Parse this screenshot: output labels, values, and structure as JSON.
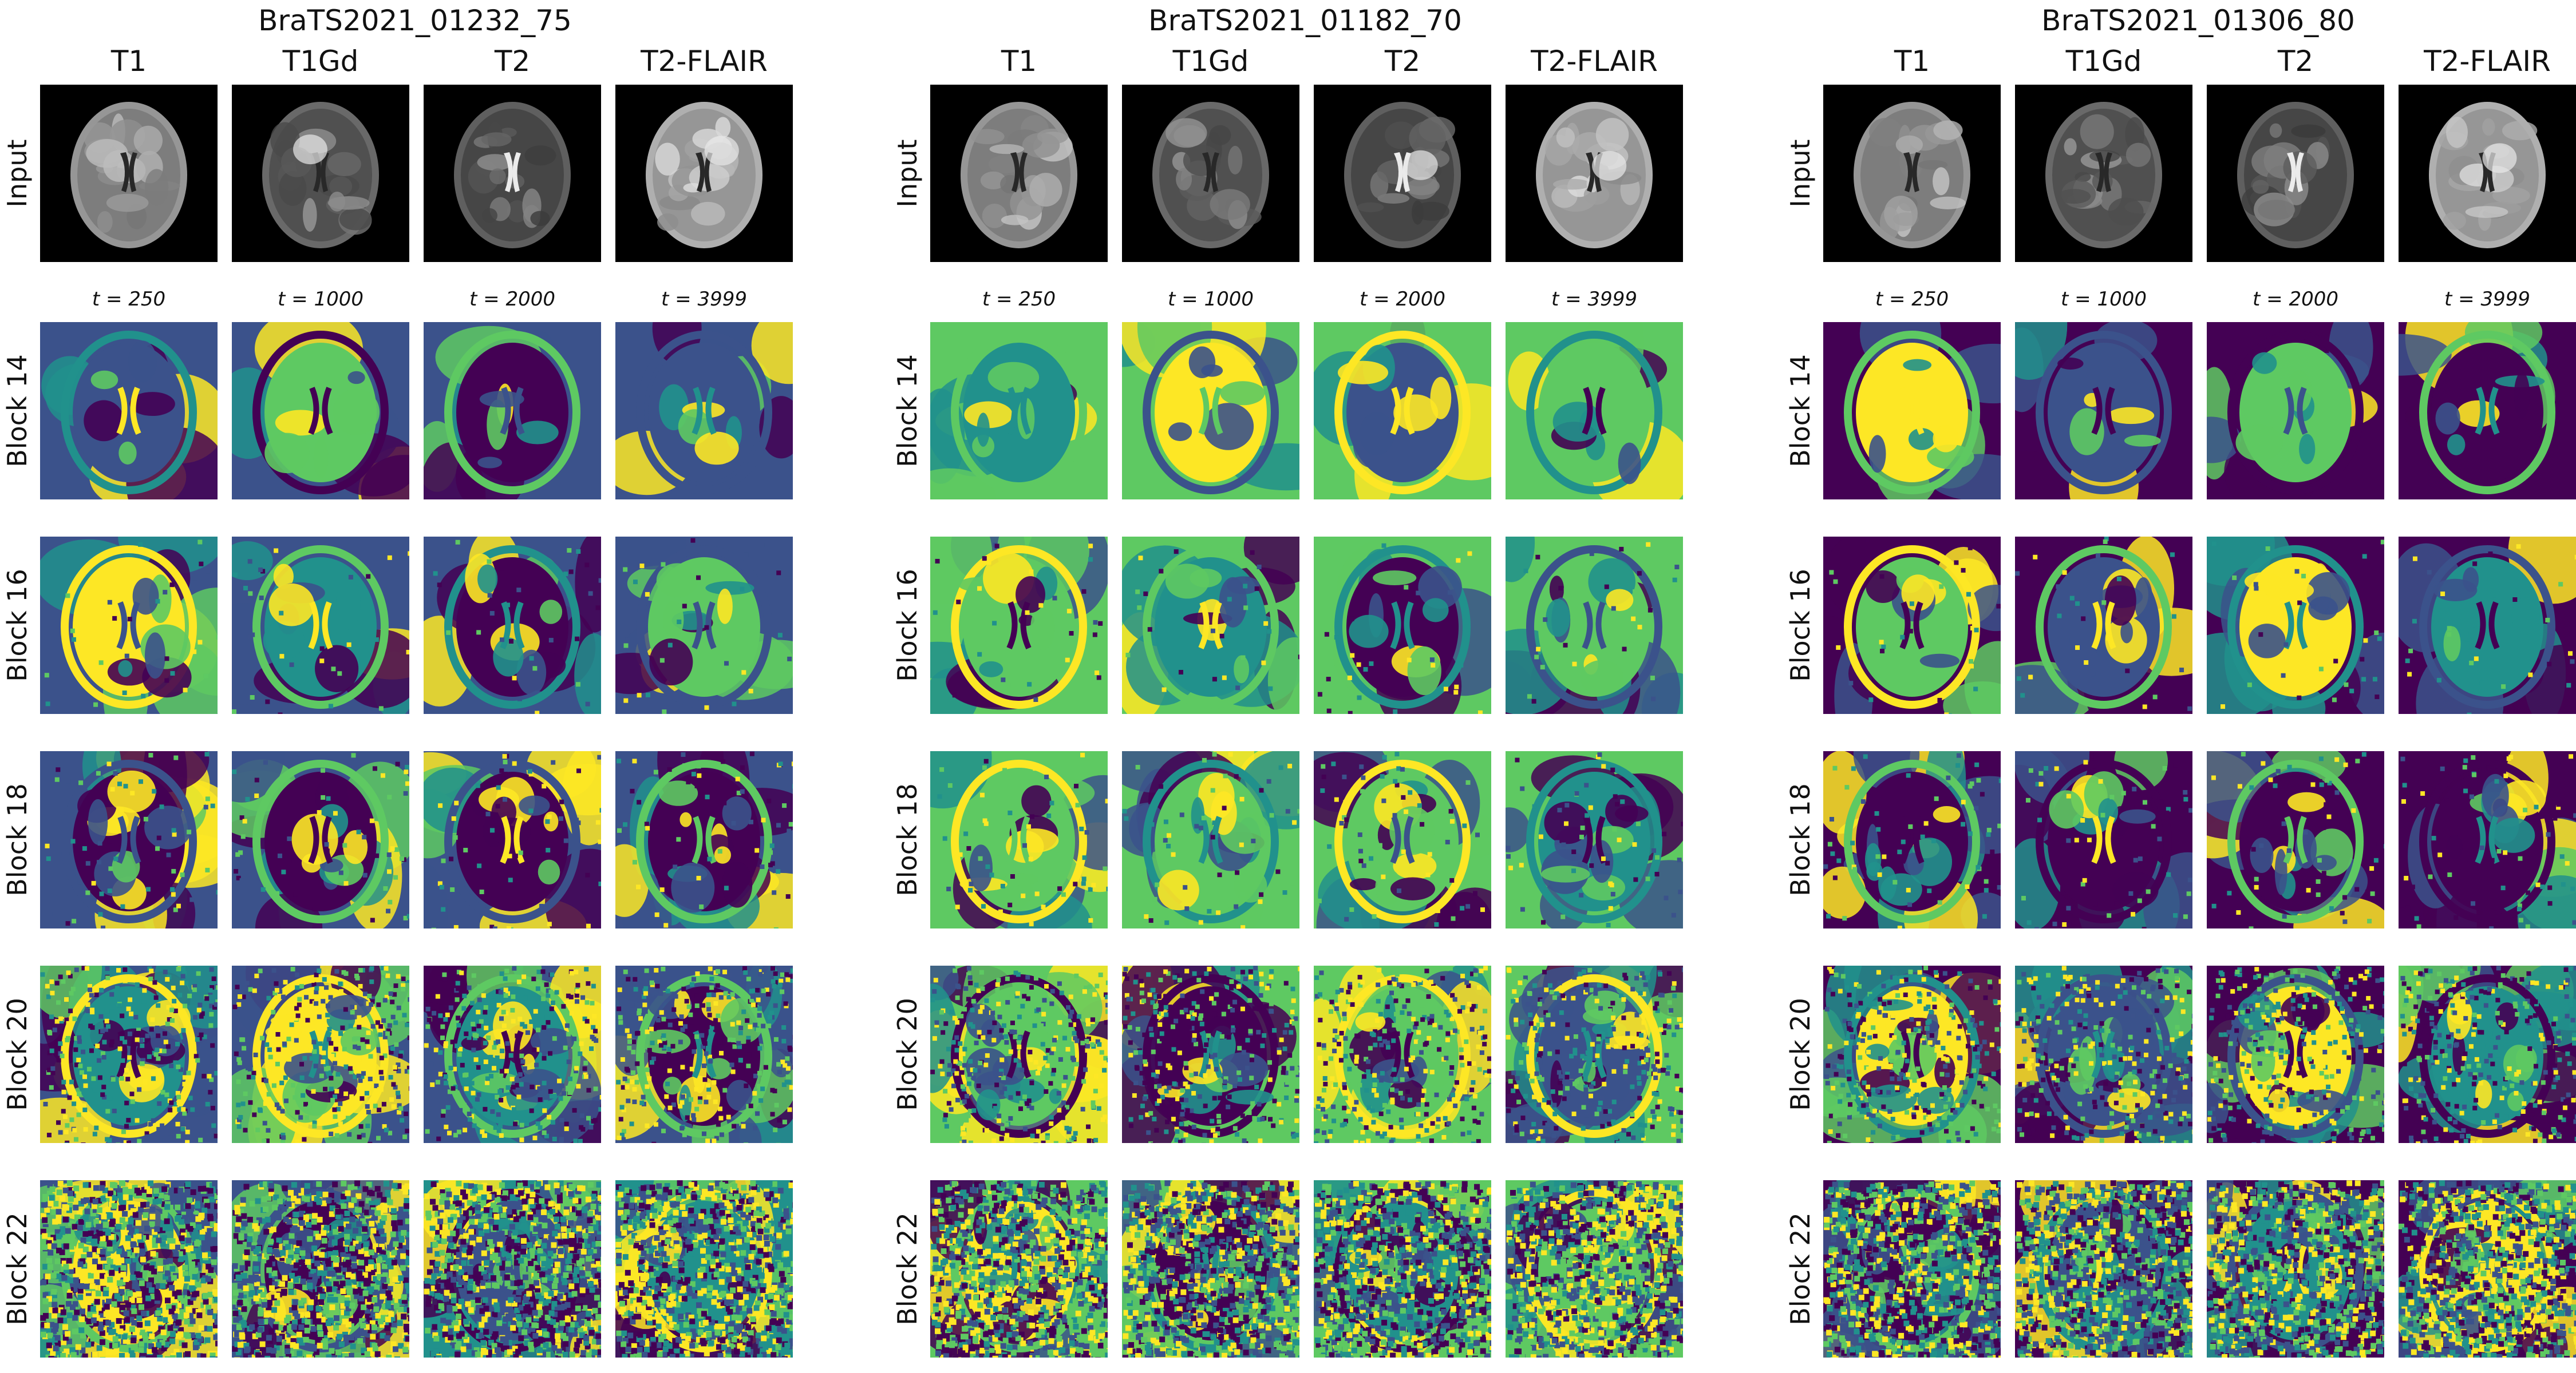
{
  "subjects": [
    {
      "id": "BraTS2021_01232_75"
    },
    {
      "id": "BraTS2021_01182_70"
    },
    {
      "id": "BraTS2021_01306_80"
    }
  ],
  "modalities": [
    "T1",
    "T1Gd",
    "T2",
    "T2-FLAIR"
  ],
  "input_label": "Input",
  "timesteps": [
    "t = 250",
    "t = 1000",
    "t = 2000",
    "t = 3999"
  ],
  "blocks": [
    "Block 14",
    "Block 16",
    "Block 18",
    "Block 20",
    "Block 22"
  ],
  "colormap": [
    "#440154",
    "#3b528b",
    "#21918c",
    "#5ec962",
    "#fde725"
  ]
}
